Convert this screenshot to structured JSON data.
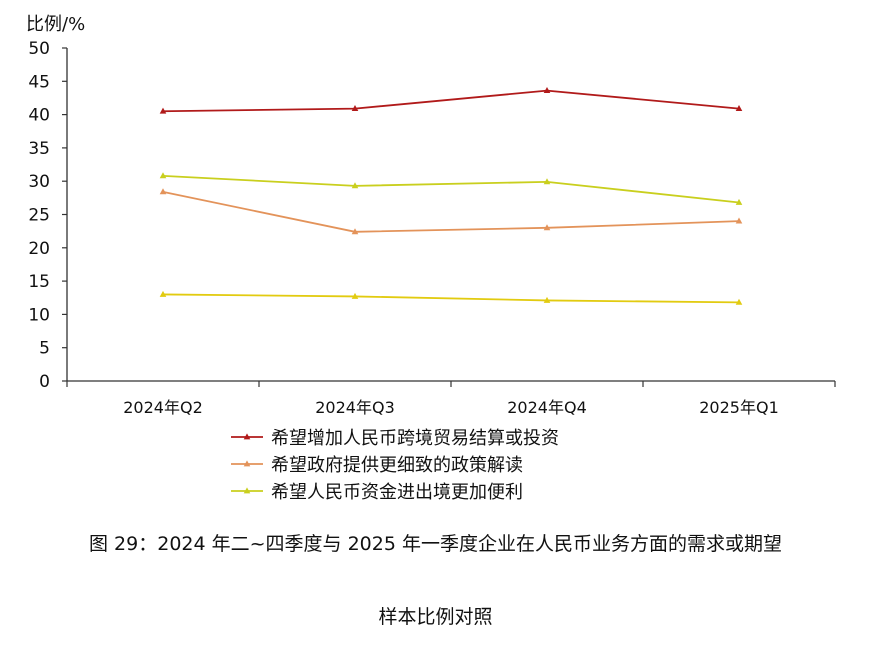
{
  "chart_data": {
    "type": "line",
    "ylabel": "比例/%",
    "ylim": [
      0,
      50
    ],
    "yticks": [
      0,
      5,
      10,
      15,
      20,
      25,
      30,
      35,
      40,
      45,
      50
    ],
    "categories": [
      "2024年Q2",
      "2024年Q3",
      "2024年Q4",
      "2025年Q1"
    ],
    "grid": false,
    "legend_position": "bottom",
    "series": [
      {
        "name": "希望增加人民币跨境贸易结算或投资",
        "color": "#b11a1a",
        "values": [
          40.5,
          40.9,
          43.6,
          40.9
        ]
      },
      {
        "name": "希望政府提供更细致的政策解读",
        "color": "#e3935a",
        "values": [
          28.4,
          22.4,
          23.0,
          24.0
        ]
      },
      {
        "name": "希望人民币资金进出境更加便利",
        "color": "#c9cf1e",
        "values": [
          30.8,
          29.3,
          29.9,
          26.8
        ]
      },
      {
        "name": "",
        "color": "#e2cb10",
        "values": [
          13.0,
          12.7,
          12.1,
          11.8
        ]
      }
    ]
  },
  "caption": {
    "figure_title": "图  29：2024 年二~四季度与 2025 年一季度企业在人民币业务方面的需求或期望",
    "subtitle": "样本比例对照"
  }
}
